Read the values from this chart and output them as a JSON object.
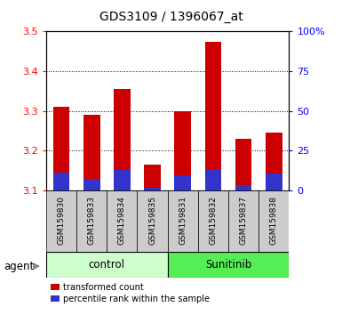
{
  "title": "GDS3109 / 1396067_at",
  "samples": [
    "GSM159830",
    "GSM159833",
    "GSM159834",
    "GSM159835",
    "GSM159831",
    "GSM159832",
    "GSM159837",
    "GSM159838"
  ],
  "red_values": [
    3.31,
    3.29,
    3.355,
    3.165,
    3.3,
    3.475,
    3.23,
    3.245
  ],
  "blue_values": [
    3.145,
    3.13,
    3.152,
    3.108,
    3.138,
    3.155,
    3.113,
    3.142
  ],
  "base": 3.1,
  "ylim": [
    3.1,
    3.5
  ],
  "yticks_left": [
    3.1,
    3.2,
    3.3,
    3.4,
    3.5
  ],
  "yticks_right": [
    0,
    25,
    50,
    75,
    100
  ],
  "yright_labels": [
    "0",
    "25",
    "50",
    "75",
    "100%"
  ],
  "red_color": "#cc0000",
  "blue_color": "#3333cc",
  "control_color": "#ccffcc",
  "sunitinib_color": "#55ee55",
  "bar_bg_color": "#cccccc",
  "agent_label": "agent",
  "legend_red": "transformed count",
  "legend_blue": "percentile rank within the sample",
  "bar_width": 0.55,
  "n_control": 4,
  "n_sunitinib": 4
}
